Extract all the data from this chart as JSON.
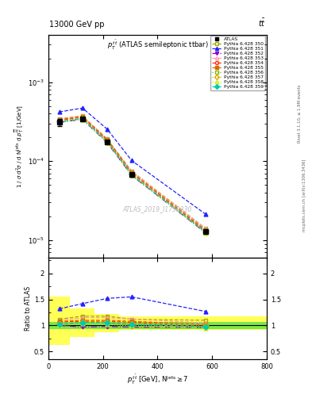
{
  "title_top_left": "13000 GeV pp",
  "title_top_right": "tt",
  "plot_title": "$p_T^{t\\bar{t}}$ (ATLAS semileptonic ttbar)",
  "watermark": "ATLAS_2019_I1750330",
  "xbins": [
    0,
    80,
    170,
    260,
    350,
    800
  ],
  "xcenters": [
    40,
    125,
    215,
    305,
    575
  ],
  "atlas_values": [
    0.00031,
    0.000345,
    0.000175,
    6.8e-05,
    1.3e-05
  ],
  "atlas_yerr_lo": [
    3e-05,
    1.2e-05,
    8e-06,
    4e-06,
    5e-07
  ],
  "atlas_yerr_hi": [
    3e-05,
    1.2e-05,
    8e-06,
    4e-06,
    5e-07
  ],
  "ratio_green_lo": 0.93,
  "ratio_green_hi": 1.07,
  "ratio_yellow_band_x": [
    0,
    80,
    80,
    170,
    170,
    260,
    260,
    350,
    350,
    800
  ],
  "ratio_yellow_band_lo": [
    0.62,
    0.62,
    0.78,
    0.78,
    0.87,
    0.87,
    0.92,
    0.92,
    0.92,
    0.92
  ],
  "ratio_yellow_band_hi": [
    1.55,
    1.55,
    1.32,
    1.32,
    1.22,
    1.22,
    1.17,
    1.17,
    1.17,
    1.17
  ],
  "series": [
    {
      "label": "Pythia 6.428 350",
      "color": "#aaaa00",
      "linestyle": "--",
      "marker": "s",
      "mfc": "none",
      "values": [
        0.000345,
        0.000375,
        0.000192,
        7.5e-05,
        1.42e-05
      ],
      "ratios": [
        1.12,
        1.18,
        1.18,
        1.12,
        1.1
      ]
    },
    {
      "label": "Pythia 6.428 351",
      "color": "#2222ff",
      "linestyle": "--",
      "marker": "^",
      "mfc": "#2222ff",
      "values": [
        0.00042,
        0.00047,
        0.000255,
        0.000102,
        2.15e-05
      ],
      "ratios": [
        1.32,
        1.42,
        1.52,
        1.55,
        1.27
      ]
    },
    {
      "label": "Pythia 6.428 352",
      "color": "#8800cc",
      "linestyle": "-.",
      "marker": "v",
      "mfc": "#8800cc",
      "values": [
        0.00031,
        0.000338,
        0.000172,
        6.6e-05,
        1.25e-05
      ],
      "ratios": [
        1.0,
        0.97,
        0.98,
        0.97,
        0.96
      ]
    },
    {
      "label": "Pythia 6.428 353",
      "color": "#ff99bb",
      "linestyle": "--",
      "marker": "^",
      "mfc": "none",
      "values": [
        0.00034,
        0.000372,
        0.00019,
        7.4e-05,
        1.4e-05
      ],
      "ratios": [
        1.1,
        1.15,
        1.15,
        1.12,
        1.05
      ]
    },
    {
      "label": "Pythia 6.428 354",
      "color": "#ff3300",
      "linestyle": "--",
      "marker": "o",
      "mfc": "none",
      "values": [
        0.00033,
        0.00036,
        0.000185,
        7.1e-05,
        1.32e-05
      ],
      "ratios": [
        1.07,
        1.08,
        1.08,
        1.06,
        0.98
      ]
    },
    {
      "label": "Pythia 6.428 355",
      "color": "#dd6600",
      "linestyle": "--",
      "marker": "s",
      "mfc": "#dd6600",
      "values": [
        0.000335,
        0.000365,
        0.000188,
        7.2e-05,
        1.35e-05
      ],
      "ratios": [
        1.08,
        1.1,
        1.1,
        1.08,
        1.02
      ]
    },
    {
      "label": "Pythia 6.428 356",
      "color": "#88bb00",
      "linestyle": ":",
      "marker": "s",
      "mfc": "none",
      "values": [
        0.000315,
        0.000342,
        0.000175,
        6.7e-05,
        1.27e-05
      ],
      "ratios": [
        1.02,
        1.05,
        1.05,
        1.01,
        0.97
      ]
    },
    {
      "label": "Pythia 6.428 357",
      "color": "#ddaa00",
      "linestyle": ":",
      "marker": "D",
      "mfc": "none",
      "values": [
        0.00032,
        0.00035,
        0.00018,
        6.9e-05,
        1.3e-05
      ],
      "ratios": [
        1.03,
        1.07,
        1.07,
        1.04,
        1.0
      ]
    },
    {
      "label": "Pythia 6.428 358",
      "color": "#ccee00",
      "linestyle": ":",
      "marker": "^",
      "mfc": "none",
      "values": [
        0.00031,
        0.000338,
        0.000173,
        6.6e-05,
        1.24e-05
      ],
      "ratios": [
        1.0,
        1.03,
        1.02,
        0.99,
        0.95
      ]
    },
    {
      "label": "Pythia 6.428 359",
      "color": "#00ccaa",
      "linestyle": "--",
      "marker": "D",
      "mfc": "#00ccaa",
      "values": [
        0.000318,
        0.000345,
        0.000177,
        6.75e-05,
        1.28e-05
      ],
      "ratios": [
        1.02,
        1.06,
        1.05,
        1.02,
        0.98
      ]
    }
  ]
}
